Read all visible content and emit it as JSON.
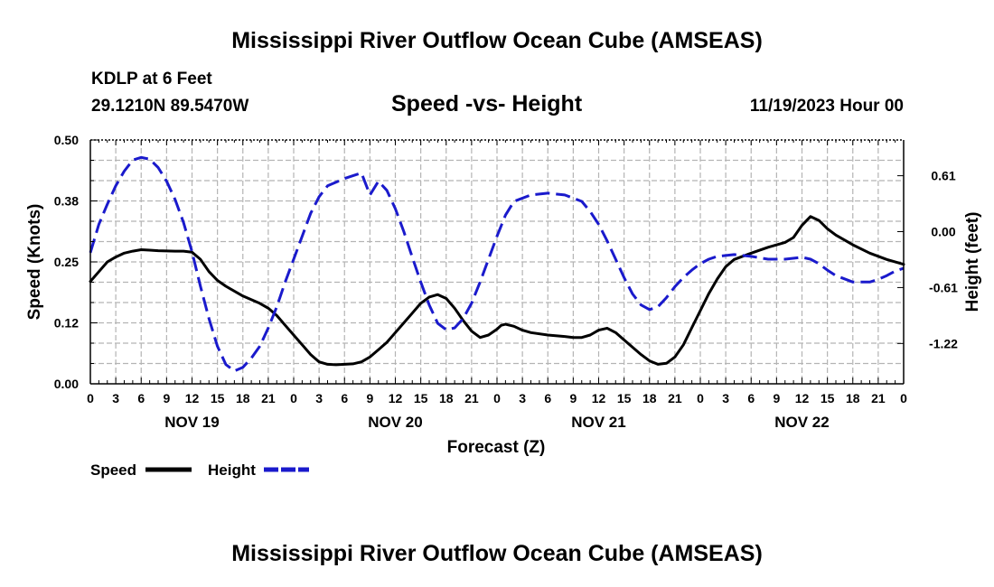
{
  "page": {
    "title_top": "Mississippi River Outflow Ocean Cube (AMSEAS)",
    "title_bottom": "Mississippi River Outflow Ocean Cube (AMSEAS)",
    "station": "KDLP at 6 Feet",
    "coords": "29.1210N  89.5470W",
    "plot_title": "Speed -vs- Height",
    "datetime": "11/19/2023 Hour 00"
  },
  "colors": {
    "speed": "#000000",
    "height": "#1a1acc",
    "grid": "#b4b4b4"
  },
  "chart_data": {
    "type": "line",
    "title": "Speed -vs- Height",
    "xlabel": "Forecast (Z)",
    "ylabel_left": "Speed (Knots)",
    "ylabel_right": "Height (feet)",
    "x_range_hours": [
      0,
      96
    ],
    "x_tick_labels": [
      "0",
      "3",
      "6",
      "9",
      "12",
      "15",
      "18",
      "21",
      "0",
      "3",
      "6",
      "9",
      "12",
      "15",
      "18",
      "21",
      "0",
      "3",
      "6",
      "9",
      "12",
      "15",
      "18",
      "21",
      "0",
      "3",
      "6",
      "9",
      "12",
      "15",
      "18",
      "21",
      "0"
    ],
    "day_labels": [
      {
        "hour": 12,
        "label": "NOV 19"
      },
      {
        "hour": 36,
        "label": "NOV 20"
      },
      {
        "hour": 60,
        "label": "NOV 21"
      },
      {
        "hour": 84,
        "label": "NOV 22"
      }
    ],
    "y_left_range": [
      0,
      0.5
    ],
    "y_left_ticks": [
      "0.00",
      "0.12",
      "0.25",
      "0.38",
      "0.50"
    ],
    "y_right_range": [
      -1.66,
      1.0
    ],
    "y_right_ticks": [
      "0.61",
      "0.00",
      "-0.61",
      "-1.22"
    ],
    "y_right_tick_values": [
      0.61,
      0.0,
      -0.61,
      -1.22
    ],
    "series": [
      {
        "name": "Speed",
        "axis": "left",
        "style": "solid",
        "points": [
          [
            0,
            0.21
          ],
          [
            1,
            0.23
          ],
          [
            2,
            0.25
          ],
          [
            3,
            0.26
          ],
          [
            4,
            0.268
          ],
          [
            5,
            0.272
          ],
          [
            6,
            0.275
          ],
          [
            7,
            0.274
          ],
          [
            8,
            0.273
          ],
          [
            10,
            0.272
          ],
          [
            11,
            0.272
          ],
          [
            12,
            0.27
          ],
          [
            13,
            0.255
          ],
          [
            14,
            0.23
          ],
          [
            15,
            0.212
          ],
          [
            16,
            0.2
          ],
          [
            18,
            0.18
          ],
          [
            20,
            0.165
          ],
          [
            21,
            0.155
          ],
          [
            22,
            0.14
          ],
          [
            23,
            0.12
          ],
          [
            24,
            0.1
          ],
          [
            25,
            0.08
          ],
          [
            26,
            0.06
          ],
          [
            27,
            0.045
          ],
          [
            28,
            0.04
          ],
          [
            29,
            0.039
          ],
          [
            30,
            0.04
          ],
          [
            31,
            0.041
          ],
          [
            32,
            0.045
          ],
          [
            33,
            0.055
          ],
          [
            34,
            0.07
          ],
          [
            35,
            0.085
          ],
          [
            36,
            0.105
          ],
          [
            37,
            0.125
          ],
          [
            38,
            0.145
          ],
          [
            39,
            0.165
          ],
          [
            40,
            0.178
          ],
          [
            41,
            0.183
          ],
          [
            42,
            0.175
          ],
          [
            43,
            0.155
          ],
          [
            44,
            0.13
          ],
          [
            45,
            0.108
          ],
          [
            46,
            0.095
          ],
          [
            47,
            0.1
          ],
          [
            48,
            0.112
          ],
          [
            48.5,
            0.12
          ],
          [
            49,
            0.122
          ],
          [
            50,
            0.118
          ],
          [
            51,
            0.11
          ],
          [
            52,
            0.105
          ],
          [
            54,
            0.1
          ],
          [
            56,
            0.097
          ],
          [
            57,
            0.095
          ],
          [
            58,
            0.095
          ],
          [
            59,
            0.1
          ],
          [
            60,
            0.11
          ],
          [
            61,
            0.114
          ],
          [
            62,
            0.105
          ],
          [
            63,
            0.09
          ],
          [
            64,
            0.075
          ],
          [
            65,
            0.06
          ],
          [
            66,
            0.047
          ],
          [
            67,
            0.04
          ],
          [
            68,
            0.042
          ],
          [
            69,
            0.055
          ],
          [
            70,
            0.08
          ],
          [
            71,
            0.115
          ],
          [
            72,
            0.15
          ],
          [
            73,
            0.185
          ],
          [
            74,
            0.215
          ],
          [
            75,
            0.24
          ],
          [
            76,
            0.255
          ],
          [
            78,
            0.268
          ],
          [
            80,
            0.28
          ],
          [
            82,
            0.29
          ],
          [
            83,
            0.3
          ],
          [
            84,
            0.325
          ],
          [
            85,
            0.343
          ],
          [
            86,
            0.335
          ],
          [
            87,
            0.318
          ],
          [
            88,
            0.305
          ],
          [
            90,
            0.285
          ],
          [
            92,
            0.268
          ],
          [
            94,
            0.255
          ],
          [
            96,
            0.245
          ]
        ]
      },
      {
        "name": "Height",
        "axis": "right",
        "style": "dashed",
        "points": [
          [
            0,
            -0.23
          ],
          [
            1,
            0.08
          ],
          [
            2,
            0.3
          ],
          [
            3,
            0.5
          ],
          [
            4,
            0.66
          ],
          [
            5,
            0.78
          ],
          [
            6,
            0.81
          ],
          [
            7,
            0.79
          ],
          [
            8,
            0.7
          ],
          [
            9,
            0.55
          ],
          [
            10,
            0.35
          ],
          [
            11,
            0.1
          ],
          [
            12,
            -0.22
          ],
          [
            13,
            -0.6
          ],
          [
            14,
            -0.95
          ],
          [
            15,
            -1.25
          ],
          [
            16,
            -1.45
          ],
          [
            17,
            -1.52
          ],
          [
            18,
            -1.48
          ],
          [
            19,
            -1.38
          ],
          [
            20,
            -1.25
          ],
          [
            21,
            -1.05
          ],
          [
            22,
            -0.82
          ],
          [
            23,
            -0.55
          ],
          [
            24,
            -0.3
          ],
          [
            25,
            -0.05
          ],
          [
            26,
            0.2
          ],
          [
            27,
            0.38
          ],
          [
            28,
            0.5
          ],
          [
            30,
            0.58
          ],
          [
            32,
            0.64
          ],
          [
            33,
            0.4
          ],
          [
            34,
            0.55
          ],
          [
            35,
            0.45
          ],
          [
            36,
            0.25
          ],
          [
            37,
            0.0
          ],
          [
            38,
            -0.28
          ],
          [
            39,
            -0.55
          ],
          [
            40,
            -0.8
          ],
          [
            41,
            -1.0
          ],
          [
            42,
            -1.07
          ],
          [
            43,
            -1.05
          ],
          [
            44,
            -0.95
          ],
          [
            45,
            -0.78
          ],
          [
            46,
            -0.55
          ],
          [
            47,
            -0.3
          ],
          [
            48,
            -0.05
          ],
          [
            49,
            0.18
          ],
          [
            50,
            0.33
          ],
          [
            52,
            0.4
          ],
          [
            54,
            0.42
          ],
          [
            56,
            0.4
          ],
          [
            58,
            0.33
          ],
          [
            59,
            0.22
          ],
          [
            60,
            0.08
          ],
          [
            61,
            -0.1
          ],
          [
            62,
            -0.3
          ],
          [
            63,
            -0.5
          ],
          [
            64,
            -0.68
          ],
          [
            65,
            -0.8
          ],
          [
            66,
            -0.85
          ],
          [
            67,
            -0.82
          ],
          [
            68,
            -0.72
          ],
          [
            69,
            -0.6
          ],
          [
            70,
            -0.5
          ],
          [
            71,
            -0.42
          ],
          [
            72,
            -0.35
          ],
          [
            73,
            -0.3
          ],
          [
            74,
            -0.27
          ],
          [
            76,
            -0.25
          ],
          [
            78,
            -0.27
          ],
          [
            80,
            -0.3
          ],
          [
            82,
            -0.3
          ],
          [
            84,
            -0.28
          ],
          [
            85,
            -0.3
          ],
          [
            86,
            -0.35
          ],
          [
            87,
            -0.42
          ],
          [
            88,
            -0.48
          ],
          [
            90,
            -0.55
          ],
          [
            92,
            -0.55
          ],
          [
            93,
            -0.52
          ],
          [
            94,
            -0.48
          ],
          [
            95,
            -0.43
          ],
          [
            96,
            -0.4
          ]
        ]
      }
    ],
    "legend": [
      {
        "label": "Speed",
        "style": "solid"
      },
      {
        "label": "Height",
        "style": "dashed"
      }
    ]
  }
}
